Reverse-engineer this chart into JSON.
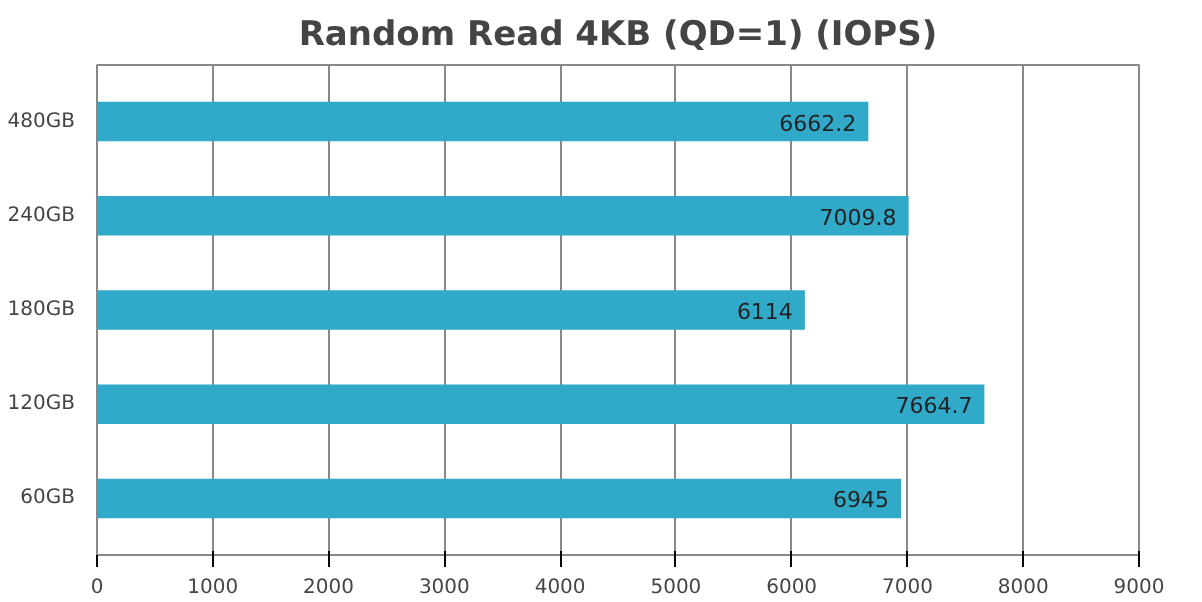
{
  "chart_data": {
    "type": "bar",
    "orientation": "horizontal",
    "title": "Random Read 4KB (QD=1) (IOPS)",
    "categories": [
      "480GB",
      "240GB",
      "180GB",
      "120GB",
      "60GB"
    ],
    "values": [
      6662.2,
      7009.8,
      6114,
      7664.7,
      6945
    ],
    "color": "#31a9c8",
    "xlim": [
      0,
      9000
    ],
    "xticks": [
      0,
      1000,
      2000,
      3000,
      4000,
      5000,
      6000,
      7000,
      8000,
      9000
    ],
    "grid": "x",
    "data_labels": true
  }
}
